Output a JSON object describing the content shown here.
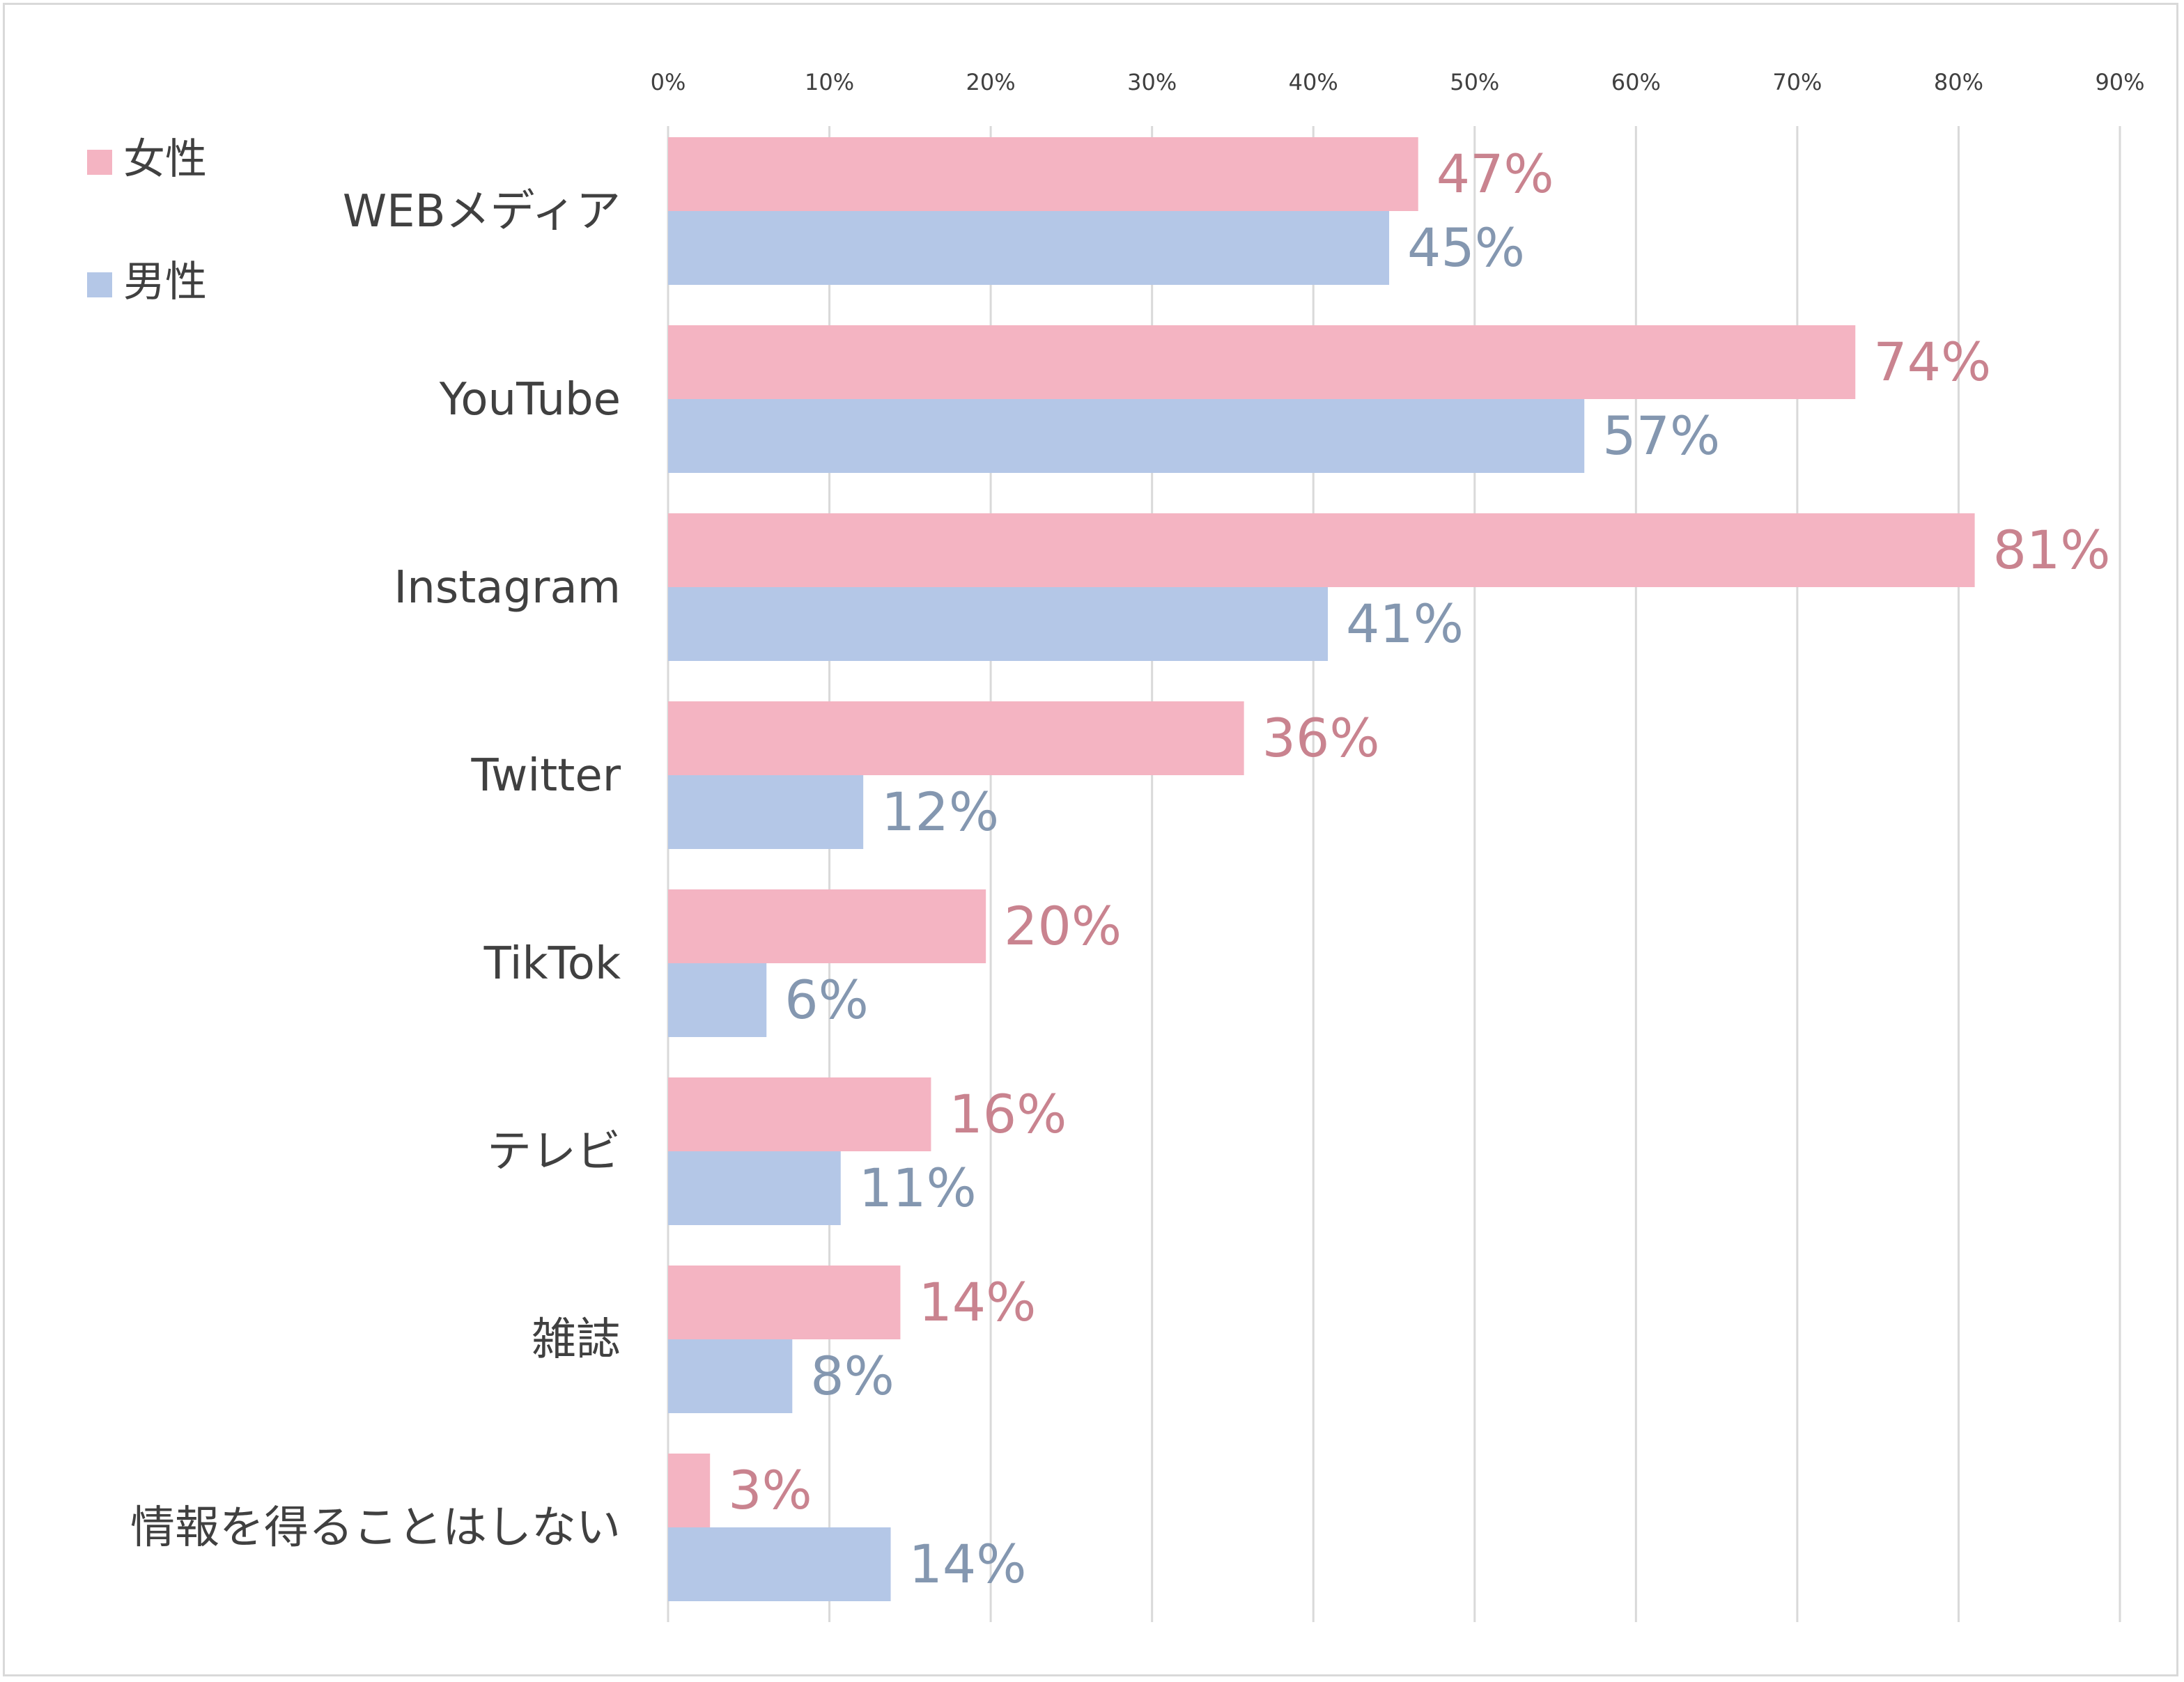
{
  "chart_data": {
    "type": "bar",
    "orientation": "horizontal",
    "title": "",
    "xlabel": "",
    "ylabel": "",
    "xlim": [
      0,
      90
    ],
    "xticks": [
      0,
      10,
      20,
      30,
      40,
      50,
      60,
      70,
      80,
      90
    ],
    "xtick_labels": [
      "0%",
      "10%",
      "20%",
      "30%",
      "40%",
      "50%",
      "60%",
      "70%",
      "80%",
      "90%"
    ],
    "grid": true,
    "legend_position": "top-left",
    "categories": [
      "WEBメディア",
      "YouTube",
      "Instagram",
      "Twitter",
      "TikTok",
      "テレビ",
      "雑誌",
      "情報を得ることはしない"
    ],
    "series": [
      {
        "name": "女性",
        "color": "#f4b4c2",
        "label_color": "#c9838f",
        "values": [
          46.5,
          73.6,
          81.0,
          35.7,
          19.7,
          16.3,
          14.4,
          2.6
        ],
        "labels": [
          "47%",
          "74%",
          "81%",
          "36%",
          "20%",
          "16%",
          "14%",
          "3%"
        ]
      },
      {
        "name": "男性",
        "color": "#b4c7e7",
        "label_color": "#8497b0",
        "values": [
          44.7,
          56.8,
          40.9,
          12.1,
          6.1,
          10.7,
          7.7,
          13.8
        ],
        "labels": [
          "45%",
          "57%",
          "41%",
          "12%",
          "6%",
          "11%",
          "8%",
          "14%"
        ]
      }
    ]
  }
}
